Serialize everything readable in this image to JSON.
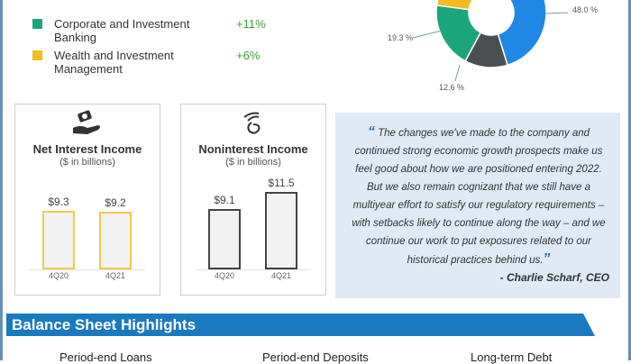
{
  "legend": [
    {
      "label": "Corporate and Investment Banking",
      "change": "+11%",
      "color": "#1aa67a"
    },
    {
      "label": "Wealth and Investment Management",
      "change": "+6%",
      "color": "#f2bb22"
    }
  ],
  "donut": {
    "labels": [
      "48.0 %",
      "19.3 %",
      "12.6 %"
    ],
    "slices": [
      {
        "value": 48.0,
        "color": "#1f88e5"
      },
      {
        "value": 12.6,
        "color": "#4a4f52"
      },
      {
        "value": 19.3,
        "color": "#1aa67a"
      },
      {
        "value": 20.1,
        "color": "#f2bb22"
      }
    ]
  },
  "cards": [
    {
      "title": "Net Interest Income",
      "subtitle": "($ in billions)",
      "icon": "money-hand-icon",
      "color": "#f2c94c",
      "bars": [
        {
          "label": "4Q20",
          "value": 9.3,
          "text": "$9.3"
        },
        {
          "label": "4Q21",
          "value": 9.2,
          "text": "$9.2"
        }
      ]
    },
    {
      "title": "Noninterest Income",
      "subtitle": "($ in billions)",
      "icon": "coin-hand-icon",
      "color": "#444444",
      "bars": [
        {
          "label": "4Q20",
          "value": 9.1,
          "text": "$9.1"
        },
        {
          "label": "4Q21",
          "value": 11.5,
          "text": "$11.5"
        }
      ]
    }
  ],
  "quote": {
    "open": "“",
    "close": "”",
    "text": "The changes we've made to the company and continued strong economic growth prospects make us feel good about how we are positioned entering 2022. But we also remain cognizant that we still have a multiyear effort to satisfy our regulatory requirements – with setbacks likely to continue along the way – and we continue our work to put exposures related to our historical practices behind us.",
    "author": "- Charlie Scharf, CEO"
  },
  "balance": {
    "title": "Balance Sheet Highlights",
    "columns": [
      "Period-end Loans",
      "Period-end Deposits",
      "Long-term Debt"
    ]
  }
}
